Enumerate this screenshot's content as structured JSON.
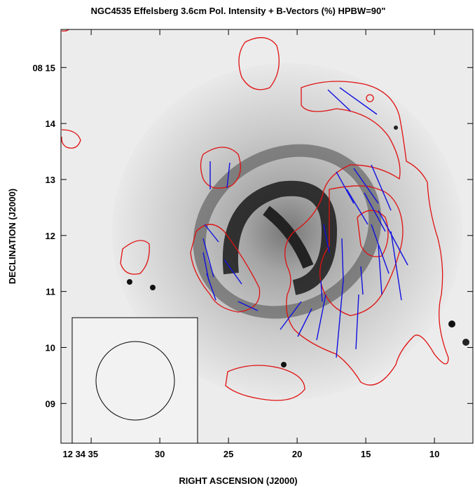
{
  "chart_data": {
    "type": "image",
    "title": "NGC4535   Effelsberg   3.6cm   Pol. Intensity + B-Vectors (%)   HPBW=90\"",
    "xlabel": "RIGHT ASCENSION (J2000)",
    "ylabel": "DECLINATION (J2000)",
    "xlim": [
      37.2,
      7.2
    ],
    "ylim": [
      8.29,
      15.68
    ],
    "xticks": [
      {
        "value": 35,
        "label": "12 34 35"
      },
      30,
      25,
      20,
      15,
      10
    ],
    "yticks": [
      {
        "value": 15,
        "label": "08 15"
      },
      14,
      13,
      12,
      11,
      10,
      {
        "value": 9,
        "label": "09"
      }
    ]
  }
}
